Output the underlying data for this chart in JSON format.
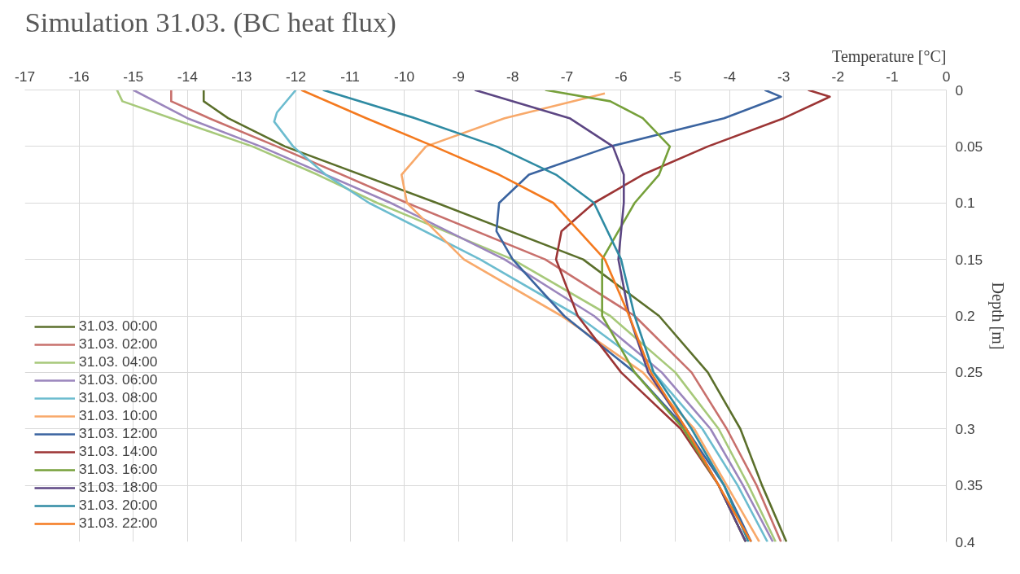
{
  "chart_data": {
    "type": "line",
    "title": "Simulation 31.03. (BC heat flux)",
    "xlabel": "Temperature [°C]",
    "ylabel": "Depth [m]",
    "xlim": [
      -17,
      0
    ],
    "xticks": [
      -17,
      -16,
      -15,
      -14,
      -13,
      -12,
      -11,
      -10,
      -9,
      -8,
      -7,
      -6,
      -5,
      -4,
      -3,
      -2,
      -1,
      0
    ],
    "ylim": [
      0.4,
      0
    ],
    "yticks": [
      0,
      0.05,
      0.1,
      0.15,
      0.2,
      0.25,
      0.3,
      0.35,
      0.4
    ],
    "grid": true,
    "legend": "bottom left",
    "line_style": "solid",
    "marker": "none",
    "series": [
      {
        "name": "31.03. 00:00",
        "color": "#5b6f2b",
        "x": [
          -13.7,
          -13.7,
          -13.25,
          -12.2,
          -9.4,
          -6.7,
          -5.3,
          -4.4,
          -3.8,
          -3.4,
          -2.95
        ],
        "values": [
          0,
          0.01,
          0.025,
          0.05,
          0.1,
          0.15,
          0.2,
          0.25,
          0.3,
          0.35,
          0.4
        ]
      },
      {
        "name": "31.03. 02:00",
        "color": "#c8706c",
        "x": [
          -14.3,
          -14.3,
          -13.6,
          -12.35,
          -9.95,
          -7.4,
          -5.75,
          -4.7,
          -4.05,
          -3.5,
          -3.05
        ],
        "values": [
          0,
          0.01,
          0.025,
          0.05,
          0.1,
          0.15,
          0.2,
          0.25,
          0.3,
          0.35,
          0.4
        ]
      },
      {
        "name": "31.03. 04:00",
        "color": "#a7c97a",
        "x": [
          -15.3,
          -15.2,
          -14.3,
          -12.8,
          -11.6,
          -10.5,
          -8.0,
          -6.2,
          -5.0,
          -4.2,
          -3.65,
          -3.15
        ],
        "values": [
          0,
          0.01,
          0.025,
          0.05,
          0.075,
          0.1,
          0.15,
          0.2,
          0.25,
          0.3,
          0.35,
          0.4
        ]
      },
      {
        "name": "31.03. 06:00",
        "color": "#9b86bd",
        "x": [
          -15.0,
          -14.0,
          -12.65,
          -10.25,
          -8.15,
          -6.5,
          -5.25,
          -4.35,
          -3.75,
          -3.2
        ],
        "values": [
          0,
          0.025,
          0.05,
          0.1,
          0.15,
          0.2,
          0.25,
          0.3,
          0.35,
          0.4
        ]
      },
      {
        "name": "31.03. 08:00",
        "color": "#6cbccf",
        "x": [
          -12.0,
          -12.35,
          -12.4,
          -12.05,
          -11.45,
          -10.65,
          -8.6,
          -6.8,
          -5.4,
          -4.5,
          -3.85,
          -3.3
        ],
        "values": [
          0,
          0.02,
          0.028,
          0.05,
          0.075,
          0.1,
          0.15,
          0.2,
          0.25,
          0.3,
          0.35,
          0.4
        ]
      },
      {
        "name": "31.03. 10:00",
        "color": "#f8a96a",
        "x": [
          -6.3,
          -8.15,
          -9.6,
          -10.05,
          -9.95,
          -8.9,
          -7.1,
          -5.6,
          -4.65,
          -4.05,
          -3.45
        ],
        "values": [
          0.003,
          0.025,
          0.05,
          0.075,
          0.1,
          0.15,
          0.2,
          0.25,
          0.3,
          0.35,
          0.4
        ]
      },
      {
        "name": "31.03. 12:00",
        "color": "#3b64a0",
        "x": [
          -3.35,
          -3.05,
          -4.1,
          -6.2,
          -7.7,
          -8.25,
          -8.3,
          -8.0,
          -7.05,
          -5.75,
          -4.8,
          -4.1,
          -3.6
        ],
        "values": [
          0,
          0.006,
          0.025,
          0.05,
          0.075,
          0.1,
          0.125,
          0.15,
          0.2,
          0.25,
          0.3,
          0.35,
          0.4
        ]
      },
      {
        "name": "31.03. 14:00",
        "color": "#9c3535",
        "x": [
          -2.55,
          -2.15,
          -3.0,
          -4.4,
          -5.6,
          -6.5,
          -7.1,
          -7.2,
          -6.8,
          -6.0,
          -4.9,
          -4.2,
          -3.7
        ],
        "values": [
          0,
          0.006,
          0.025,
          0.05,
          0.075,
          0.1,
          0.125,
          0.15,
          0.2,
          0.25,
          0.3,
          0.35,
          0.4
        ]
      },
      {
        "name": "31.03. 16:00",
        "color": "#76a03a",
        "x": [
          -7.4,
          -6.2,
          -5.6,
          -5.1,
          -5.3,
          -5.75,
          -6.35,
          -6.35,
          -5.75,
          -4.85,
          -4.2,
          -3.7
        ],
        "values": [
          0,
          0.01,
          0.025,
          0.05,
          0.075,
          0.1,
          0.15,
          0.2,
          0.25,
          0.3,
          0.35,
          0.4
        ]
      },
      {
        "name": "31.03. 18:00",
        "color": "#5c4683",
        "x": [
          -8.7,
          -6.95,
          -6.15,
          -5.95,
          -5.95,
          -6.05,
          -5.85,
          -5.5,
          -4.8,
          -4.2,
          -3.7
        ],
        "values": [
          0,
          0.025,
          0.05,
          0.075,
          0.1,
          0.15,
          0.2,
          0.25,
          0.3,
          0.35,
          0.4
        ]
      },
      {
        "name": "31.03. 20:00",
        "color": "#2f8ba3",
        "x": [
          -11.5,
          -9.8,
          -8.3,
          -7.2,
          -6.5,
          -6.0,
          -5.75,
          -5.4,
          -4.7,
          -4.1,
          -3.65
        ],
        "values": [
          0,
          0.025,
          0.05,
          0.075,
          0.1,
          0.15,
          0.2,
          0.25,
          0.3,
          0.35,
          0.4
        ]
      },
      {
        "name": "31.03. 22:00",
        "color": "#f47a1f",
        "x": [
          -11.9,
          -10.7,
          -9.45,
          -8.25,
          -7.25,
          -6.3,
          -5.85,
          -5.45,
          -4.8,
          -4.2,
          -3.6
        ],
        "values": [
          0,
          0.025,
          0.05,
          0.075,
          0.1,
          0.15,
          0.2,
          0.25,
          0.3,
          0.35,
          0.4
        ]
      }
    ]
  }
}
